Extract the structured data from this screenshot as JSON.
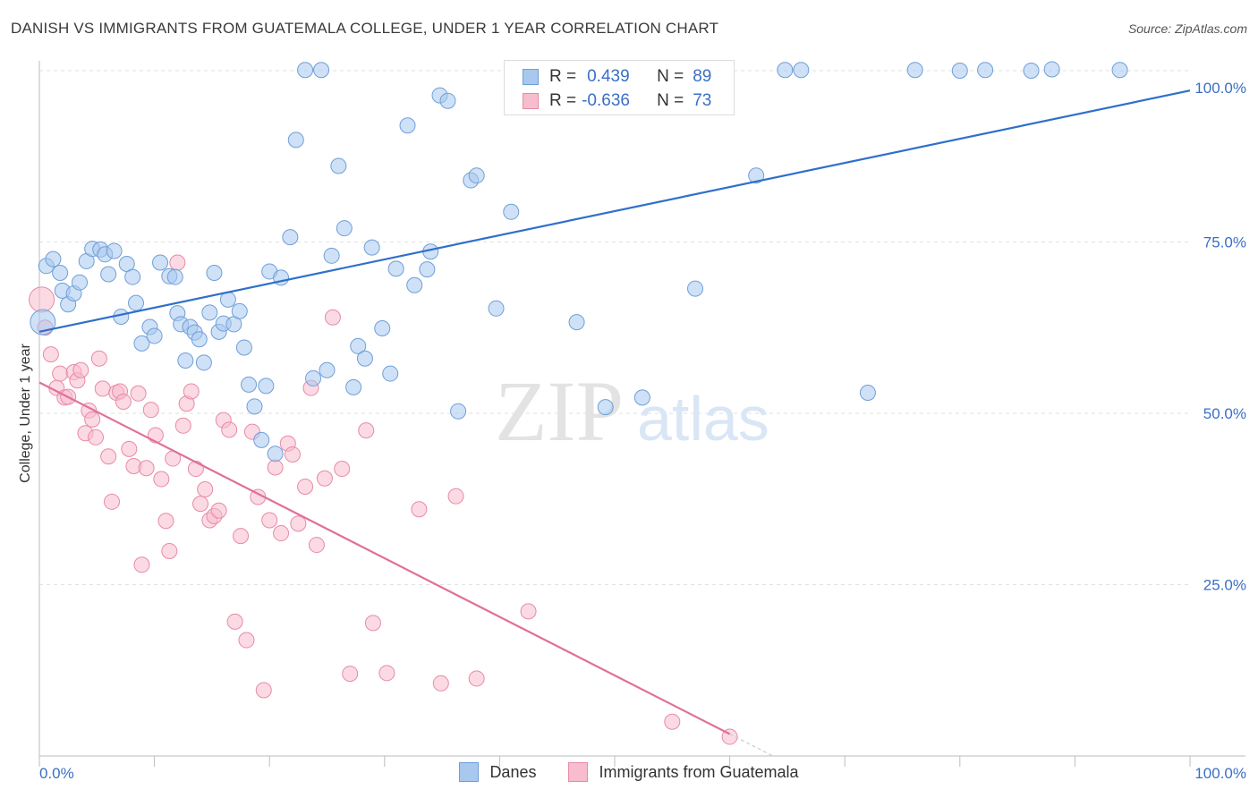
{
  "header": {
    "title": "DANISH VS IMMIGRANTS FROM GUATEMALA COLLEGE, UNDER 1 YEAR CORRELATION CHART",
    "source": "Source: ZipAtlas.com"
  },
  "watermark": {
    "zip": "ZIP",
    "atlas": "atlas"
  },
  "legend": {
    "rows": [
      {
        "r_label": "R =",
        "r_value": "0.439",
        "n_label": "N =",
        "n_value": "89"
      },
      {
        "r_label": "R =",
        "r_value": "-0.636",
        "n_label": "N =",
        "n_value": "73"
      }
    ]
  },
  "colors": {
    "danes_fill": "#a8c8ee",
    "danes_stroke": "#6f9fd8",
    "danes_line": "#2f6fcc",
    "guat_fill": "#f7bccd",
    "guat_stroke": "#e88aa6",
    "guat_line": "#e0709a",
    "tick_label": "#3a6fc4",
    "grid": "#e2e2e2"
  },
  "chart_data": {
    "type": "scatter",
    "title": "DANISH VS IMMIGRANTS FROM GUATEMALA COLLEGE, UNDER 1 YEAR CORRELATION CHART",
    "xlabel": "",
    "ylabel": "College, Under 1 year",
    "xlim": [
      0,
      100
    ],
    "ylim": [
      0,
      100
    ],
    "x_tick_labels": [
      "0.0%",
      "100.0%"
    ],
    "y_ticks": [
      25,
      50,
      75,
      100
    ],
    "y_tick_labels": [
      "25.0%",
      "50.0%",
      "75.0%",
      "100.0%"
    ],
    "grid": true,
    "legend_position": "bottom",
    "series": [
      {
        "name": "Danes",
        "trend": {
          "x": [
            0,
            100
          ],
          "y": [
            61.9,
            97.1
          ]
        },
        "x": [
          0.3,
          0.6,
          1.2,
          1.8,
          2.0,
          2.5,
          3.0,
          3.5,
          4.1,
          4.6,
          5.3,
          5.7,
          6.0,
          6.5,
          7.1,
          7.6,
          8.1,
          8.4,
          8.9,
          9.6,
          10.0,
          10.5,
          11.3,
          11.8,
          12.0,
          12.3,
          12.7,
          13.1,
          13.5,
          13.9,
          14.3,
          14.8,
          15.2,
          15.6,
          16.0,
          16.4,
          16.9,
          17.4,
          17.8,
          18.2,
          18.7,
          19.3,
          19.7,
          20.0,
          20.5,
          21.0,
          21.8,
          22.3,
          23.1,
          23.8,
          24.5,
          25.0,
          25.4,
          26.0,
          26.5,
          27.3,
          27.7,
          28.3,
          28.9,
          29.8,
          30.5,
          31.0,
          32.0,
          32.6,
          33.7,
          34.0,
          34.8,
          35.5,
          36.4,
          37.5,
          38.0,
          39.7,
          41.0,
          42.7,
          43.3,
          46.7,
          49.2,
          52.4,
          57.0,
          62.3,
          64.8,
          66.2,
          72.0,
          76.1,
          80.0,
          82.2,
          86.2,
          88.0,
          93.9
        ],
        "y": [
          63.3,
          71.5,
          72.5,
          70.5,
          67.9,
          65.9,
          67.5,
          69.1,
          72.2,
          74.0,
          73.9,
          73.2,
          70.3,
          73.7,
          64.1,
          71.8,
          69.9,
          66.1,
          60.2,
          62.6,
          61.3,
          72.0,
          70.0,
          69.9,
          64.6,
          63.0,
          57.7,
          62.6,
          61.8,
          60.8,
          57.4,
          64.7,
          70.5,
          61.9,
          63.1,
          66.6,
          63.0,
          64.9,
          59.6,
          54.2,
          51.0,
          46.1,
          54.0,
          70.7,
          44.1,
          69.8,
          75.7,
          89.9,
          100.1,
          55.1,
          100.1,
          56.3,
          73.0,
          86.1,
          77.0,
          53.8,
          59.8,
          58.0,
          74.2,
          62.4,
          55.8,
          71.1,
          92.0,
          68.7,
          71.0,
          73.6,
          96.4,
          95.6,
          50.3,
          84.0,
          84.7,
          65.3,
          79.4,
          100.1,
          100.3,
          63.3,
          50.9,
          52.3,
          68.2,
          84.7,
          100.1,
          100.1,
          53.0,
          100.1,
          100.0,
          100.1,
          100.0,
          100.2,
          100.1
        ]
      },
      {
        "name": "Immigrants from Guatemala",
        "trend": {
          "x": [
            0,
            60
          ],
          "y": [
            54.5,
            3.2
          ]
        },
        "x": [
          0.2,
          0.5,
          1.0,
          1.5,
          1.8,
          2.2,
          2.5,
          3.0,
          3.3,
          3.6,
          4.0,
          4.3,
          4.6,
          4.9,
          5.2,
          5.5,
          6.0,
          6.3,
          6.7,
          7.0,
          7.3,
          7.8,
          8.2,
          8.6,
          8.9,
          9.3,
          9.7,
          10.1,
          10.6,
          11.0,
          11.3,
          11.6,
          12.0,
          12.5,
          12.8,
          13.2,
          13.6,
          14.0,
          14.4,
          14.8,
          15.2,
          15.6,
          16.0,
          16.5,
          17.0,
          17.5,
          18.0,
          18.5,
          19.0,
          19.5,
          20.0,
          20.5,
          21.0,
          21.6,
          22.0,
          22.5,
          23.1,
          23.6,
          24.1,
          24.8,
          25.5,
          26.3,
          27.0,
          28.4,
          29.0,
          30.2,
          33.0,
          34.9,
          36.2,
          38.0,
          42.5,
          55.0,
          60.0
        ],
        "y": [
          66.6,
          62.5,
          58.6,
          53.7,
          55.8,
          52.3,
          52.4,
          56.0,
          54.8,
          56.3,
          47.1,
          50.4,
          49.1,
          46.5,
          58.0,
          53.6,
          43.7,
          37.1,
          53.0,
          53.2,
          51.7,
          44.8,
          42.3,
          52.9,
          27.9,
          42.0,
          50.5,
          46.8,
          40.4,
          34.3,
          29.9,
          43.4,
          72.0,
          48.2,
          51.4,
          53.2,
          41.9,
          36.8,
          38.9,
          34.4,
          35.0,
          35.8,
          49.0,
          47.6,
          19.6,
          32.1,
          16.9,
          47.3,
          37.8,
          9.6,
          34.4,
          42.1,
          32.5,
          45.6,
          44.0,
          33.9,
          39.3,
          53.7,
          30.8,
          40.5,
          64.0,
          41.9,
          12.0,
          47.5,
          19.4,
          12.1,
          36.0,
          10.6,
          37.9,
          11.3,
          21.1,
          5.0,
          2.8
        ]
      }
    ]
  },
  "bottom_legend": {
    "items": [
      {
        "label": "Danes"
      },
      {
        "label": "Immigrants from Guatemala"
      }
    ]
  }
}
